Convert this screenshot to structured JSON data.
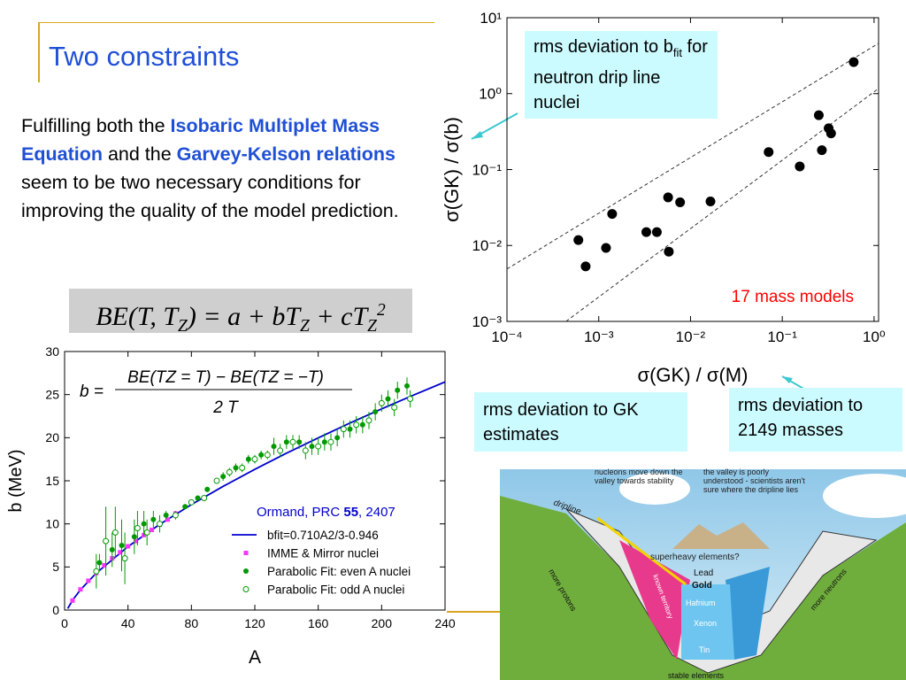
{
  "slide": {
    "title": "Two constraints",
    "body": [
      {
        "text": "Fulfilling both the "
      },
      {
        "text": "Isobaric Multiplet Mass Equation",
        "emphasis": true
      },
      {
        "text": " and the "
      },
      {
        "text": "Garvey-Kelson relations",
        "emphasis": true
      },
      {
        "text": " seem to be two necessary conditions for improving the quality of the model prediction."
      }
    ],
    "equation": [
      {
        "text": "BE(T, T"
      },
      {
        "text": "Z",
        "sub": true
      },
      {
        "text": ") = a + bT"
      },
      {
        "text": "Z",
        "sub": true
      },
      {
        "text": " + cT"
      },
      {
        "text": "Z",
        "sub": true
      },
      {
        "text": "2",
        "sup": true
      }
    ],
    "callouts": [
      [
        {
          "text": "rms deviation to b"
        },
        {
          "text": "fit",
          "sub": true
        },
        {
          "text": " for neutron drip line nuclei"
        }
      ],
      [
        {
          "text": "rms deviation to GK estimates"
        }
      ],
      [
        {
          "text": "rms deviation to 2149 masses"
        }
      ]
    ]
  },
  "illustration": {
    "labels": [
      "nucleons move down the valley towards stability",
      "the valley is poorly understood - scientists aren't sure where the dripline lies",
      "dripline",
      "superheavy elements?",
      "Lead",
      "Gold",
      "Hafnium",
      "Xenon",
      "Tin",
      "more protons",
      "more neutrons",
      "known territory",
      "stable elements"
    ]
  },
  "chart_data": [
    {
      "type": "scatter",
      "xlabel": "σ(GK) / σ(M)",
      "ylabel": "σ(GK) / σ(b)",
      "xscale": "log",
      "yscale": "log",
      "xlim": [
        0.0001,
        1.12
      ],
      "ylim": [
        0.001,
        10
      ],
      "xticks": [
        {
          "value": 0.0001,
          "label": "10⁻⁴"
        },
        {
          "value": 0.001,
          "label": "10⁻³"
        },
        {
          "value": 0.01,
          "label": "10⁻²"
        },
        {
          "value": 0.1,
          "label": "10⁻¹"
        },
        {
          "value": 1,
          "label": "10⁰"
        }
      ],
      "yticks": [
        {
          "value": 0.001,
          "label": "10⁻³"
        },
        {
          "value": 0.01,
          "label": "10⁻²"
        },
        {
          "value": 0.1,
          "label": "10⁻¹"
        },
        {
          "value": 1,
          "label": "10⁰"
        },
        {
          "value": 10,
          "label": "10¹"
        }
      ],
      "color": "#000000",
      "x": [
        0.0006,
        0.00072,
        0.0014,
        0.0012,
        0.0033,
        0.0043,
        0.0057,
        0.0077,
        0.0058,
        0.0165,
        0.071,
        0.155,
        0.25,
        0.32,
        0.34,
        0.27,
        0.6
      ],
      "values": [
        0.0118,
        0.0053,
        0.026,
        0.0093,
        0.015,
        0.015,
        0.043,
        0.037,
        0.0083,
        0.038,
        0.17,
        0.11,
        0.52,
        0.35,
        0.3,
        0.18,
        2.6
      ],
      "guide_lines": [
        {
          "x": [
            0.0001,
            1.12
          ],
          "y": [
            0.0049,
            4.6
          ]
        },
        {
          "x": [
            0.00044,
            1.12
          ],
          "y": [
            0.001,
            1.17
          ]
        }
      ],
      "annotation": "17 mass models",
      "annotation_color": "#ff0000"
    },
    {
      "type": "scatter",
      "xlabel": "A",
      "ylabel": "b (MeV)",
      "xlim": [
        0,
        240
      ],
      "ylim": [
        0,
        30
      ],
      "xticks": [
        0,
        40,
        80,
        120,
        160,
        200,
        240
      ],
      "yticks": [
        0,
        5,
        10,
        15,
        20,
        25,
        30
      ],
      "formula": {
        "lhs": "b =",
        "numerator": "BE(TZ = T) − BE(TZ = −T)",
        "denominator": "2 T"
      },
      "annotation": [
        {
          "text": "Ormand, PRC "
        },
        {
          "text": "55",
          "bold": true
        },
        {
          "text": ", 2407"
        }
      ],
      "annotation_color": "#0000cc",
      "legend": "lower right",
      "series": [
        {
          "name": "bfit=0.710A2/3-0.946",
          "kind": "line",
          "color": "#0000cc",
          "x": [
            2,
            5,
            10,
            20,
            40,
            60,
            80,
            100,
            120,
            140,
            160,
            180,
            200,
            220,
            240
          ],
          "values": [
            0.18,
            1.13,
            2.35,
            4.29,
            7.36,
            9.94,
            12.24,
            14.35,
            16.33,
            18.2,
            19.98,
            21.7,
            23.34,
            24.93,
            26.47
          ]
        },
        {
          "name": "IMME & Mirror nuclei",
          "kind": "square",
          "color": "#ff33ff",
          "x": [
            5,
            10,
            15,
            20,
            25,
            30,
            35,
            40,
            45,
            50,
            55,
            60,
            65,
            70
          ],
          "values": [
            1.1,
            2.4,
            3.4,
            4.3,
            5.2,
            6.0,
            6.7,
            7.4,
            8.0,
            8.7,
            9.3,
            9.9,
            10.5,
            11.2
          ]
        },
        {
          "name": "Parabolic Fit: even A nuclei",
          "kind": "filled",
          "color": "#009900",
          "x": [
            22,
            30,
            36,
            44,
            50,
            56,
            64,
            76,
            84,
            90,
            100,
            108,
            116,
            124,
            132,
            140,
            148,
            156,
            164,
            172,
            180,
            188,
            196,
            204,
            210,
            216
          ],
          "values": [
            5.5,
            7,
            7.5,
            8.5,
            10,
            10.5,
            11,
            12,
            13,
            14,
            15.5,
            16.5,
            17.5,
            18,
            19,
            19.5,
            19.5,
            19,
            19.5,
            20,
            21,
            21.5,
            23,
            24.5,
            25.5,
            26
          ],
          "errors": [
            1,
            2,
            3,
            2,
            1.5,
            1,
            0.5,
            0.3,
            0.3,
            0.3,
            0.5,
            0.5,
            0.5,
            0.5,
            1,
            0.8,
            0.8,
            1,
            1,
            1,
            1,
            1,
            1,
            1,
            1,
            1
          ]
        },
        {
          "name": "Parabolic Fit:  odd  A nuclei",
          "kind": "open",
          "color": "#009900",
          "x": [
            20,
            26,
            32,
            38,
            46,
            52,
            60,
            70,
            80,
            88,
            96,
            104,
            112,
            120,
            128,
            136,
            144,
            152,
            160,
            168,
            176,
            184,
            192,
            200,
            208,
            218
          ],
          "values": [
            4.5,
            8,
            9,
            6,
            9.5,
            9,
            10,
            11,
            12.5,
            13,
            15,
            16,
            16.5,
            17.5,
            18,
            18.5,
            19.5,
            18.5,
            19,
            19.5,
            21,
            21.5,
            22,
            24,
            23.5,
            24.5
          ],
          "errors": [
            2,
            4,
            3,
            3,
            2,
            1.5,
            1,
            0.5,
            0.3,
            0.3,
            0.3,
            0.5,
            0.5,
            0.5,
            0.5,
            0.8,
            0.8,
            1,
            1,
            1,
            1,
            1,
            1,
            1,
            1,
            1
          ]
        }
      ]
    }
  ]
}
